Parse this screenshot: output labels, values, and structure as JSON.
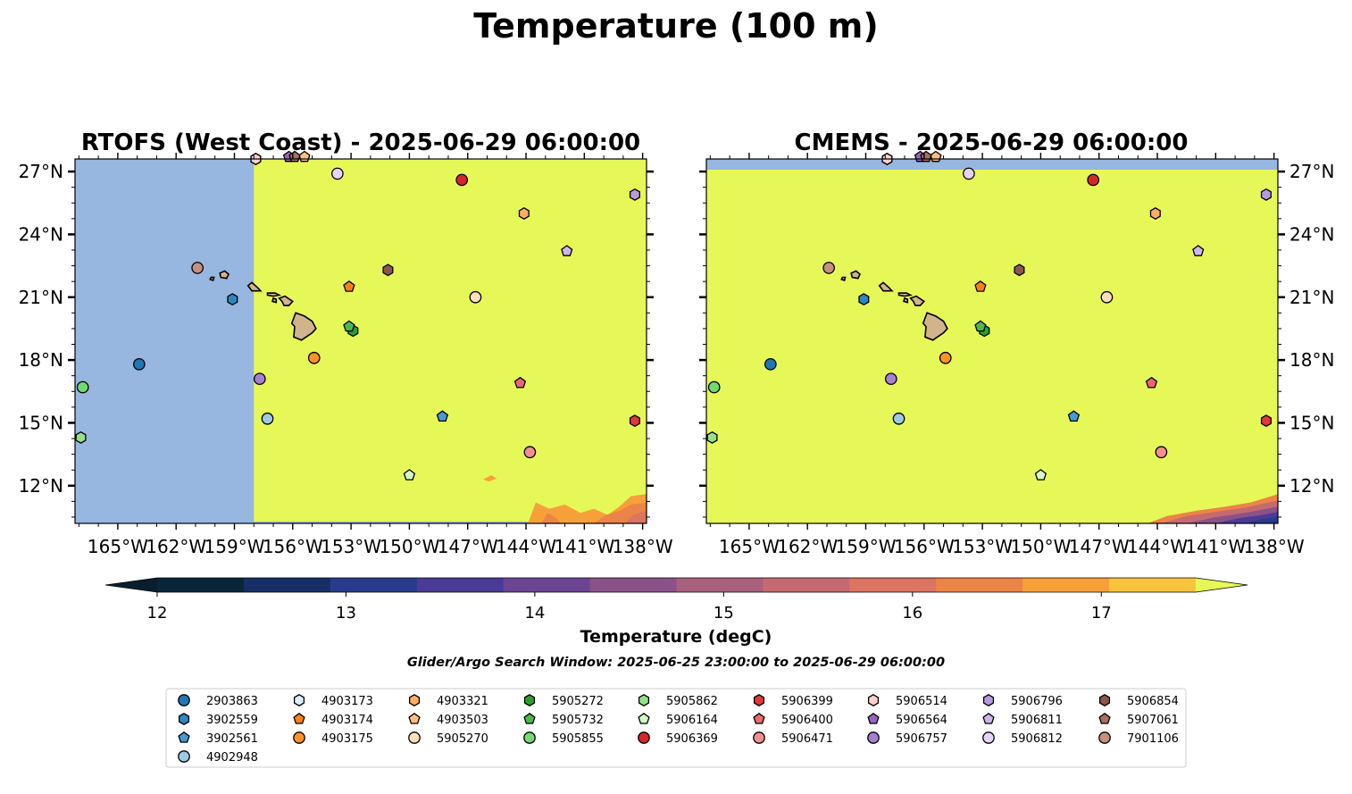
{
  "title": "Temperature (100 m)",
  "panels": [
    {
      "id": "rtofs",
      "title": "RTOFS (West Coast) - 2025-06-29 06:00:00"
    },
    {
      "id": "cmems",
      "title": "CMEMS - 2025-06-29 06:00:00"
    }
  ],
  "colorbar": {
    "label": "Temperature (degC)",
    "ticks": [
      12,
      13,
      14,
      15,
      16,
      17
    ],
    "tick_labels": [
      "12",
      "13",
      "14",
      "15",
      "16",
      "17"
    ],
    "range": [
      12,
      17.5
    ],
    "step": 0.5,
    "colors": [
      "#0a2538",
      "#172e67",
      "#283b8c",
      "#4a3b96",
      "#6b4592",
      "#8b5288",
      "#a8607d",
      "#c46a70",
      "#db7460",
      "#ec8447",
      "#f7a03a",
      "#f8c43e"
    ],
    "under_color": "#0a1f2e",
    "over_color": "#e6f857"
  },
  "search_window": "Glider/Argo Search Window: 2025-06-25 23:00:00 to 2025-06-29 06:00:00",
  "chart_data": {
    "type": "scatter",
    "map": {
      "lon_range": [
        -167.2,
        -137.8
      ],
      "lat_range": [
        10.2,
        27.6
      ],
      "lon_ticks": [
        -165,
        -162,
        -159,
        -156,
        -153,
        -150,
        -147,
        -144,
        -141,
        -138
      ],
      "lon_tick_labels": [
        "165°W",
        "162°W",
        "159°W",
        "156°W",
        "153°W",
        "150°W",
        "147°W",
        "144°W",
        "141°W",
        "138°W"
      ],
      "lat_ticks": [
        12,
        15,
        18,
        21,
        24,
        27
      ],
      "lat_tick_labels": [
        "12°N",
        "15°N",
        "18°N",
        "21°N",
        "24°N",
        "27°N"
      ],
      "background_field_color": "#e6f857",
      "no_data_color": "#97b6e0",
      "land_color": "#d2b48c",
      "rtofs_no_data_west_of_lon": -158
    },
    "floats": [
      {
        "id": "2903863",
        "marker": "circle",
        "color": "#1f77b4",
        "lon": -163.9,
        "lat": 17.8
      },
      {
        "id": "3902559",
        "marker": "hexagon",
        "color": "#2e86c1",
        "lon": -159.1,
        "lat": 20.9
      },
      {
        "id": "3902561",
        "marker": "pentagon",
        "color": "#4a98d6",
        "lon": -148.3,
        "lat": 15.3
      },
      {
        "id": "4902948",
        "marker": "circle",
        "color": "#9ecae1",
        "lon": -157.3,
        "lat": 15.2
      },
      {
        "id": "4903173",
        "marker": "hexagon",
        "color": "#ddeeff",
        "lon": -157.9,
        "lat": 27.6
      },
      {
        "id": "4903174",
        "marker": "pentagon",
        "color": "#ff7f0e",
        "lon": -153.1,
        "lat": 21.5
      },
      {
        "id": "4903175",
        "marker": "circle",
        "color": "#fd9327",
        "lon": -154.9,
        "lat": 18.1
      },
      {
        "id": "4903321",
        "marker": "hexagon",
        "color": "#fdae61",
        "lon": -144.1,
        "lat": 25.0
      },
      {
        "id": "4903503",
        "marker": "pentagon",
        "color": "#fdbf80",
        "lon": -155.4,
        "lat": 27.7
      },
      {
        "id": "5905270",
        "marker": "circle",
        "color": "#ffe0b8",
        "lon": -146.6,
        "lat": 21.0
      },
      {
        "id": "5905272",
        "marker": "hexagon",
        "color": "#2ca02c",
        "lon": -152.9,
        "lat": 19.4
      },
      {
        "id": "5905732",
        "marker": "pentagon",
        "color": "#4cb84c",
        "lon": -153.1,
        "lat": 19.6
      },
      {
        "id": "5905855",
        "marker": "circle",
        "color": "#74d874",
        "lon": -166.8,
        "lat": 16.7
      },
      {
        "id": "5905862",
        "marker": "hexagon",
        "color": "#98df8a",
        "lon": -166.9,
        "lat": 14.3
      },
      {
        "id": "5906164",
        "marker": "pentagon",
        "color": "#d4f7c8",
        "lon": -150.0,
        "lat": 12.5
      },
      {
        "id": "5906369",
        "marker": "circle",
        "color": "#d62728",
        "lon": -147.3,
        "lat": 26.6
      },
      {
        "id": "5906399",
        "marker": "hexagon",
        "color": "#e03838",
        "lon": -138.4,
        "lat": 15.1
      },
      {
        "id": "5906400",
        "marker": "pentagon",
        "color": "#ea6a6a",
        "lon": -144.3,
        "lat": 16.9
      },
      {
        "id": "5906471",
        "marker": "circle",
        "color": "#f28f8f",
        "lon": -143.8,
        "lat": 13.6
      },
      {
        "id": "5906514",
        "marker": "hexagon",
        "color": "#ffd0d0",
        "lon": -157.9,
        "lat": 27.6
      },
      {
        "id": "5906564",
        "marker": "pentagon",
        "color": "#9467bd",
        "lon": -156.2,
        "lat": 27.7
      },
      {
        "id": "5906757",
        "marker": "circle",
        "color": "#a57fd0",
        "lon": -157.7,
        "lat": 17.1
      },
      {
        "id": "5906796",
        "marker": "hexagon",
        "color": "#b89ae0",
        "lon": -138.4,
        "lat": 25.9
      },
      {
        "id": "5906811",
        "marker": "pentagon",
        "color": "#cdb6f0",
        "lon": -141.9,
        "lat": 23.2
      },
      {
        "id": "5906812",
        "marker": "circle",
        "color": "#e5d4ff",
        "lon": -153.7,
        "lat": 26.9
      },
      {
        "id": "5906854",
        "marker": "hexagon",
        "color": "#8c564b",
        "lon": -151.1,
        "lat": 22.3
      },
      {
        "id": "5907061",
        "marker": "pentagon",
        "color": "#a4705f",
        "lon": -155.9,
        "lat": 27.7
      },
      {
        "id": "7901106",
        "marker": "circle",
        "color": "#c49080",
        "lon": -160.9,
        "lat": 22.4
      }
    ]
  }
}
